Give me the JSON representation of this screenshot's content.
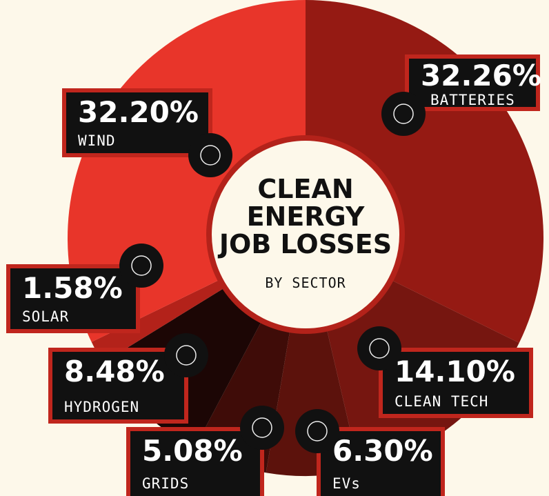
{
  "chart_data": {
    "type": "pie",
    "title": "CLEAN\nENERGY\nJOB LOSSES",
    "subtitle": "BY SECTOR",
    "categories": [
      "BATTERIES",
      "CLEAN TECH",
      "EVs",
      "GRIDS",
      "HYDROGEN",
      "SOLAR",
      "WIND"
    ],
    "values": [
      32.26,
      14.1,
      6.3,
      5.08,
      8.48,
      1.58,
      32.2
    ],
    "value_labels": [
      "32.26%",
      "14.10%",
      "6.30%",
      "5.08%",
      "8.48%",
      "1.58%",
      "32.20%"
    ],
    "colors": [
      "#951a13",
      "#761610",
      "#5c120c",
      "#3f0c08",
      "#1c0605",
      "#b3221a",
      "#e8352a"
    ]
  }
}
